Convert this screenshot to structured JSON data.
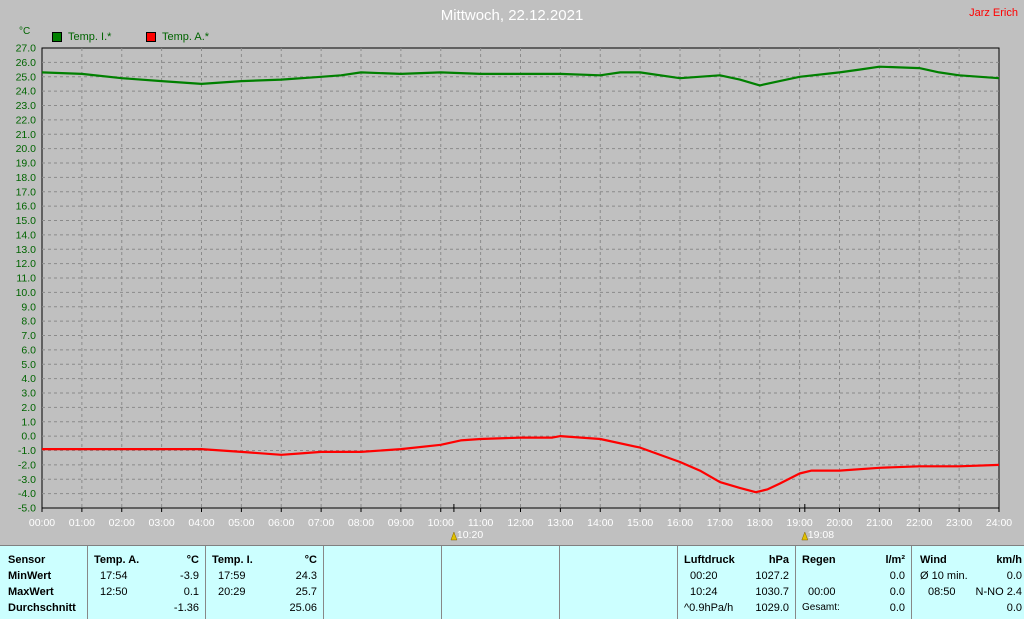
{
  "header": {
    "title": "Mittwoch, 22.12.2021",
    "author": "Jarz Erich",
    "unit": "°C",
    "colors": {
      "inner": "#008000",
      "outer": "#ff0000"
    }
  },
  "chart_data": {
    "type": "line",
    "title": "Mittwoch, 22.12.2021",
    "ylabel": "°C",
    "ylim": [
      -5.0,
      27.0
    ],
    "xlim": [
      0,
      24
    ],
    "grid": true,
    "legend": "top-left",
    "y_ticks": [
      "27.0",
      "26.0",
      "25.0",
      "24.0",
      "23.0",
      "22.0",
      "21.0",
      "20.0",
      "19.0",
      "18.0",
      "17.0",
      "16.0",
      "15.0",
      "14.0",
      "13.0",
      "12.0",
      "11.0",
      "10.0",
      "9.0",
      "8.0",
      "7.0",
      "6.0",
      "5.0",
      "4.0",
      "3.0",
      "2.0",
      "1.0",
      "0.0",
      "-1.0",
      "-2.0",
      "-3.0",
      "-4.0",
      "-5.0"
    ],
    "x_ticks": [
      "00:00",
      "01:00",
      "02:00",
      "03:00",
      "04:00",
      "05:00",
      "06:00",
      "07:00",
      "08:00",
      "09:00",
      "10:00",
      "11:00",
      "12:00",
      "13:00",
      "14:00",
      "15:00",
      "16:00",
      "17:00",
      "18:00",
      "19:00",
      "20:00",
      "21:00",
      "22:00",
      "23:00",
      "24:00"
    ],
    "markers": [
      {
        "label": "10:20",
        "hour": 10.33
      },
      {
        "label": "19:08",
        "hour": 19.13
      }
    ],
    "series": [
      {
        "name": "Temp. I.*",
        "color": "#008000",
        "x": [
          0,
          1,
          2,
          3,
          4,
          5,
          6,
          7,
          7.5,
          8,
          9,
          10,
          11,
          12,
          13,
          14,
          14.5,
          15,
          16,
          17,
          17.5,
          18,
          18.5,
          19,
          20,
          20.5,
          21,
          22,
          22.5,
          23,
          24
        ],
        "y": [
          25.3,
          25.2,
          24.9,
          24.7,
          24.5,
          24.7,
          24.8,
          25.0,
          25.1,
          25.3,
          25.2,
          25.3,
          25.2,
          25.2,
          25.2,
          25.1,
          25.3,
          25.3,
          24.9,
          25.1,
          24.8,
          24.4,
          24.7,
          25.0,
          25.3,
          25.5,
          25.7,
          25.6,
          25.3,
          25.1,
          24.9
        ]
      },
      {
        "name": "Temp. A.*",
        "color": "#ff0000",
        "x": [
          0,
          1,
          2,
          3,
          4,
          5,
          6,
          6.5,
          7,
          8,
          9,
          10,
          10.5,
          11,
          12,
          12.8,
          13,
          14,
          15,
          16,
          16.5,
          17,
          17.5,
          17.9,
          18.2,
          18.5,
          19,
          19.3,
          19.6,
          20,
          21,
          22,
          23,
          24
        ],
        "y": [
          -0.9,
          -0.9,
          -0.9,
          -0.9,
          -0.9,
          -1.1,
          -1.3,
          -1.2,
          -1.1,
          -1.1,
          -0.9,
          -0.6,
          -0.3,
          -0.2,
          -0.1,
          -0.1,
          0.0,
          -0.2,
          -0.8,
          -1.8,
          -2.4,
          -3.2,
          -3.6,
          -3.9,
          -3.7,
          -3.3,
          -2.6,
          -2.4,
          -2.4,
          -2.4,
          -2.2,
          -2.1,
          -2.1,
          -2.0
        ]
      }
    ]
  },
  "table": {
    "sensor": {
      "header": "Sensor",
      "rows": [
        "MinWert",
        "MaxWert",
        "Durchschnitt"
      ]
    },
    "temp_a": {
      "header": "Temp. A.",
      "unit": "°C",
      "min_time": "17:54",
      "min": "-3.9",
      "max_time": "12:50",
      "max": "0.1",
      "avg": "-1.36"
    },
    "temp_i": {
      "header": "Temp. I.",
      "unit": "°C",
      "min_time": "17:59",
      "min": "24.3",
      "max_time": "20:29",
      "max": "25.7",
      "avg": "25.06"
    },
    "pressure": {
      "header": "Luftdruck",
      "unit": "hPa",
      "min_time": "00:20",
      "min": "1027.2",
      "max_time": "10:24",
      "max": "1030.7",
      "trend": "^0.9hPa/h",
      "current": "1029.0"
    },
    "rain": {
      "header": "Regen",
      "unit": "l/m²",
      "v1": "0.0",
      "time": "00:00",
      "v2": "0.0",
      "total_label": "Gesamt:",
      "total": "0.0"
    },
    "wind": {
      "header": "Wind",
      "unit": "km/h",
      "avg_label": "Ø 10 min.",
      "avg": "0.0",
      "time": "08:50",
      "dir": "N-NO 2.4",
      "v3": "0.0"
    }
  }
}
